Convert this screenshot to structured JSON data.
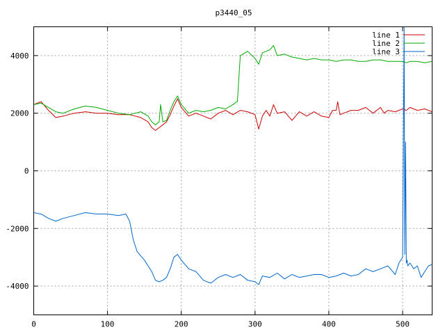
{
  "chart_data": {
    "type": "line",
    "title": "p3440_05",
    "xlabel": "",
    "ylabel": "",
    "xlim": [
      0,
      540
    ],
    "ylim": [
      -5000,
      5000
    ],
    "xticks": [
      0,
      100,
      200,
      300,
      400,
      500
    ],
    "yticks": [
      -4000,
      -2000,
      0,
      2000,
      4000
    ],
    "grid": true,
    "legend_position": "top-right",
    "series": [
      {
        "name": "line 1",
        "color": "#cc0000",
        "x": [
          0,
          10,
          20,
          30,
          40,
          55,
          70,
          85,
          100,
          115,
          130,
          145,
          155,
          160,
          165,
          170,
          175,
          180,
          185,
          190,
          195,
          200,
          210,
          220,
          230,
          240,
          250,
          260,
          270,
          280,
          290,
          300,
          305,
          310,
          315,
          320,
          325,
          330,
          340,
          350,
          355,
          360,
          370,
          380,
          390,
          400,
          405,
          410,
          412,
          415,
          420,
          430,
          440,
          450,
          460,
          470,
          475,
          480,
          490,
          500,
          505,
          510,
          520,
          530,
          540
        ],
        "values": [
          2300,
          2400,
          2100,
          1850,
          1900,
          2000,
          2050,
          2000,
          2000,
          1950,
          1950,
          1850,
          1700,
          1500,
          1400,
          1500,
          1600,
          1700,
          1950,
          2250,
          2500,
          2200,
          1900,
          2000,
          1900,
          1800,
          2000,
          2100,
          1950,
          2100,
          2050,
          1950,
          1450,
          1900,
          2100,
          1900,
          2300,
          2000,
          2050,
          1750,
          1900,
          2050,
          1900,
          2050,
          1900,
          1850,
          2100,
          2100,
          2400,
          1950,
          2000,
          2100,
          2100,
          2200,
          2000,
          2200,
          2000,
          2100,
          2050,
          2150,
          2100,
          2200,
          2100,
          2150,
          2050
        ]
      },
      {
        "name": "line 2",
        "color": "#00aa00",
        "x": [
          0,
          10,
          20,
          30,
          40,
          55,
          70,
          85,
          100,
          115,
          130,
          145,
          155,
          160,
          165,
          170,
          172,
          175,
          180,
          185,
          190,
          195,
          200,
          210,
          220,
          230,
          240,
          250,
          260,
          270,
          275,
          276,
          280,
          290,
          300,
          305,
          310,
          320,
          325,
          330,
          340,
          350,
          360,
          370,
          380,
          390,
          400,
          410,
          420,
          430,
          440,
          450,
          460,
          470,
          480,
          490,
          500,
          505,
          510,
          520,
          530,
          540
        ],
        "values": [
          2300,
          2350,
          2200,
          2050,
          2000,
          2150,
          2250,
          2200,
          2100,
          2000,
          1950,
          2050,
          1900,
          1700,
          1600,
          1700,
          2300,
          1700,
          1750,
          2100,
          2400,
          2600,
          2300,
          2000,
          2100,
          2050,
          2100,
          2200,
          2150,
          2300,
          2400,
          2400,
          4000,
          4150,
          3900,
          3700,
          4100,
          4200,
          4350,
          4000,
          4050,
          3950,
          3900,
          3850,
          3900,
          3850,
          3850,
          3800,
          3850,
          3850,
          3800,
          3800,
          3850,
          3850,
          3800,
          3800,
          3800,
          3750,
          3800,
          3800,
          3750,
          3800
        ]
      },
      {
        "name": "line 3",
        "color": "#0066cc",
        "x": [
          0,
          10,
          20,
          30,
          40,
          55,
          70,
          85,
          100,
          115,
          125,
          130,
          135,
          140,
          150,
          160,
          165,
          170,
          175,
          180,
          185,
          190,
          195,
          200,
          210,
          220,
          230,
          240,
          250,
          260,
          270,
          280,
          290,
          300,
          305,
          310,
          320,
          330,
          340,
          350,
          360,
          370,
          380,
          390,
          400,
          410,
          420,
          430,
          440,
          450,
          460,
          470,
          480,
          490,
          495,
          500,
          502,
          503,
          504,
          505,
          506,
          507,
          510,
          515,
          520,
          525,
          530,
          535,
          540
        ],
        "values": [
          -1450,
          -1500,
          -1650,
          -1750,
          -1650,
          -1550,
          -1450,
          -1500,
          -1500,
          -1550,
          -1500,
          -1750,
          -2400,
          -2800,
          -3100,
          -3500,
          -3800,
          -3850,
          -3800,
          -3700,
          -3400,
          -3000,
          -2900,
          -3100,
          -3400,
          -3500,
          -3800,
          -3900,
          -3700,
          -3600,
          -3700,
          -3600,
          -3800,
          -3850,
          -3950,
          -3650,
          -3700,
          -3550,
          -3750,
          -3600,
          -3700,
          -3650,
          -3600,
          -3600,
          -3700,
          -3650,
          -3550,
          -3650,
          -3600,
          -3400,
          -3500,
          -3400,
          -3300,
          -3600,
          -3200,
          -3000,
          5000,
          -2900,
          1000,
          -3200,
          -3100,
          -3300,
          -3200,
          -3400,
          -3300,
          -3700,
          -3500,
          -3300,
          -3250
        ]
      }
    ]
  }
}
